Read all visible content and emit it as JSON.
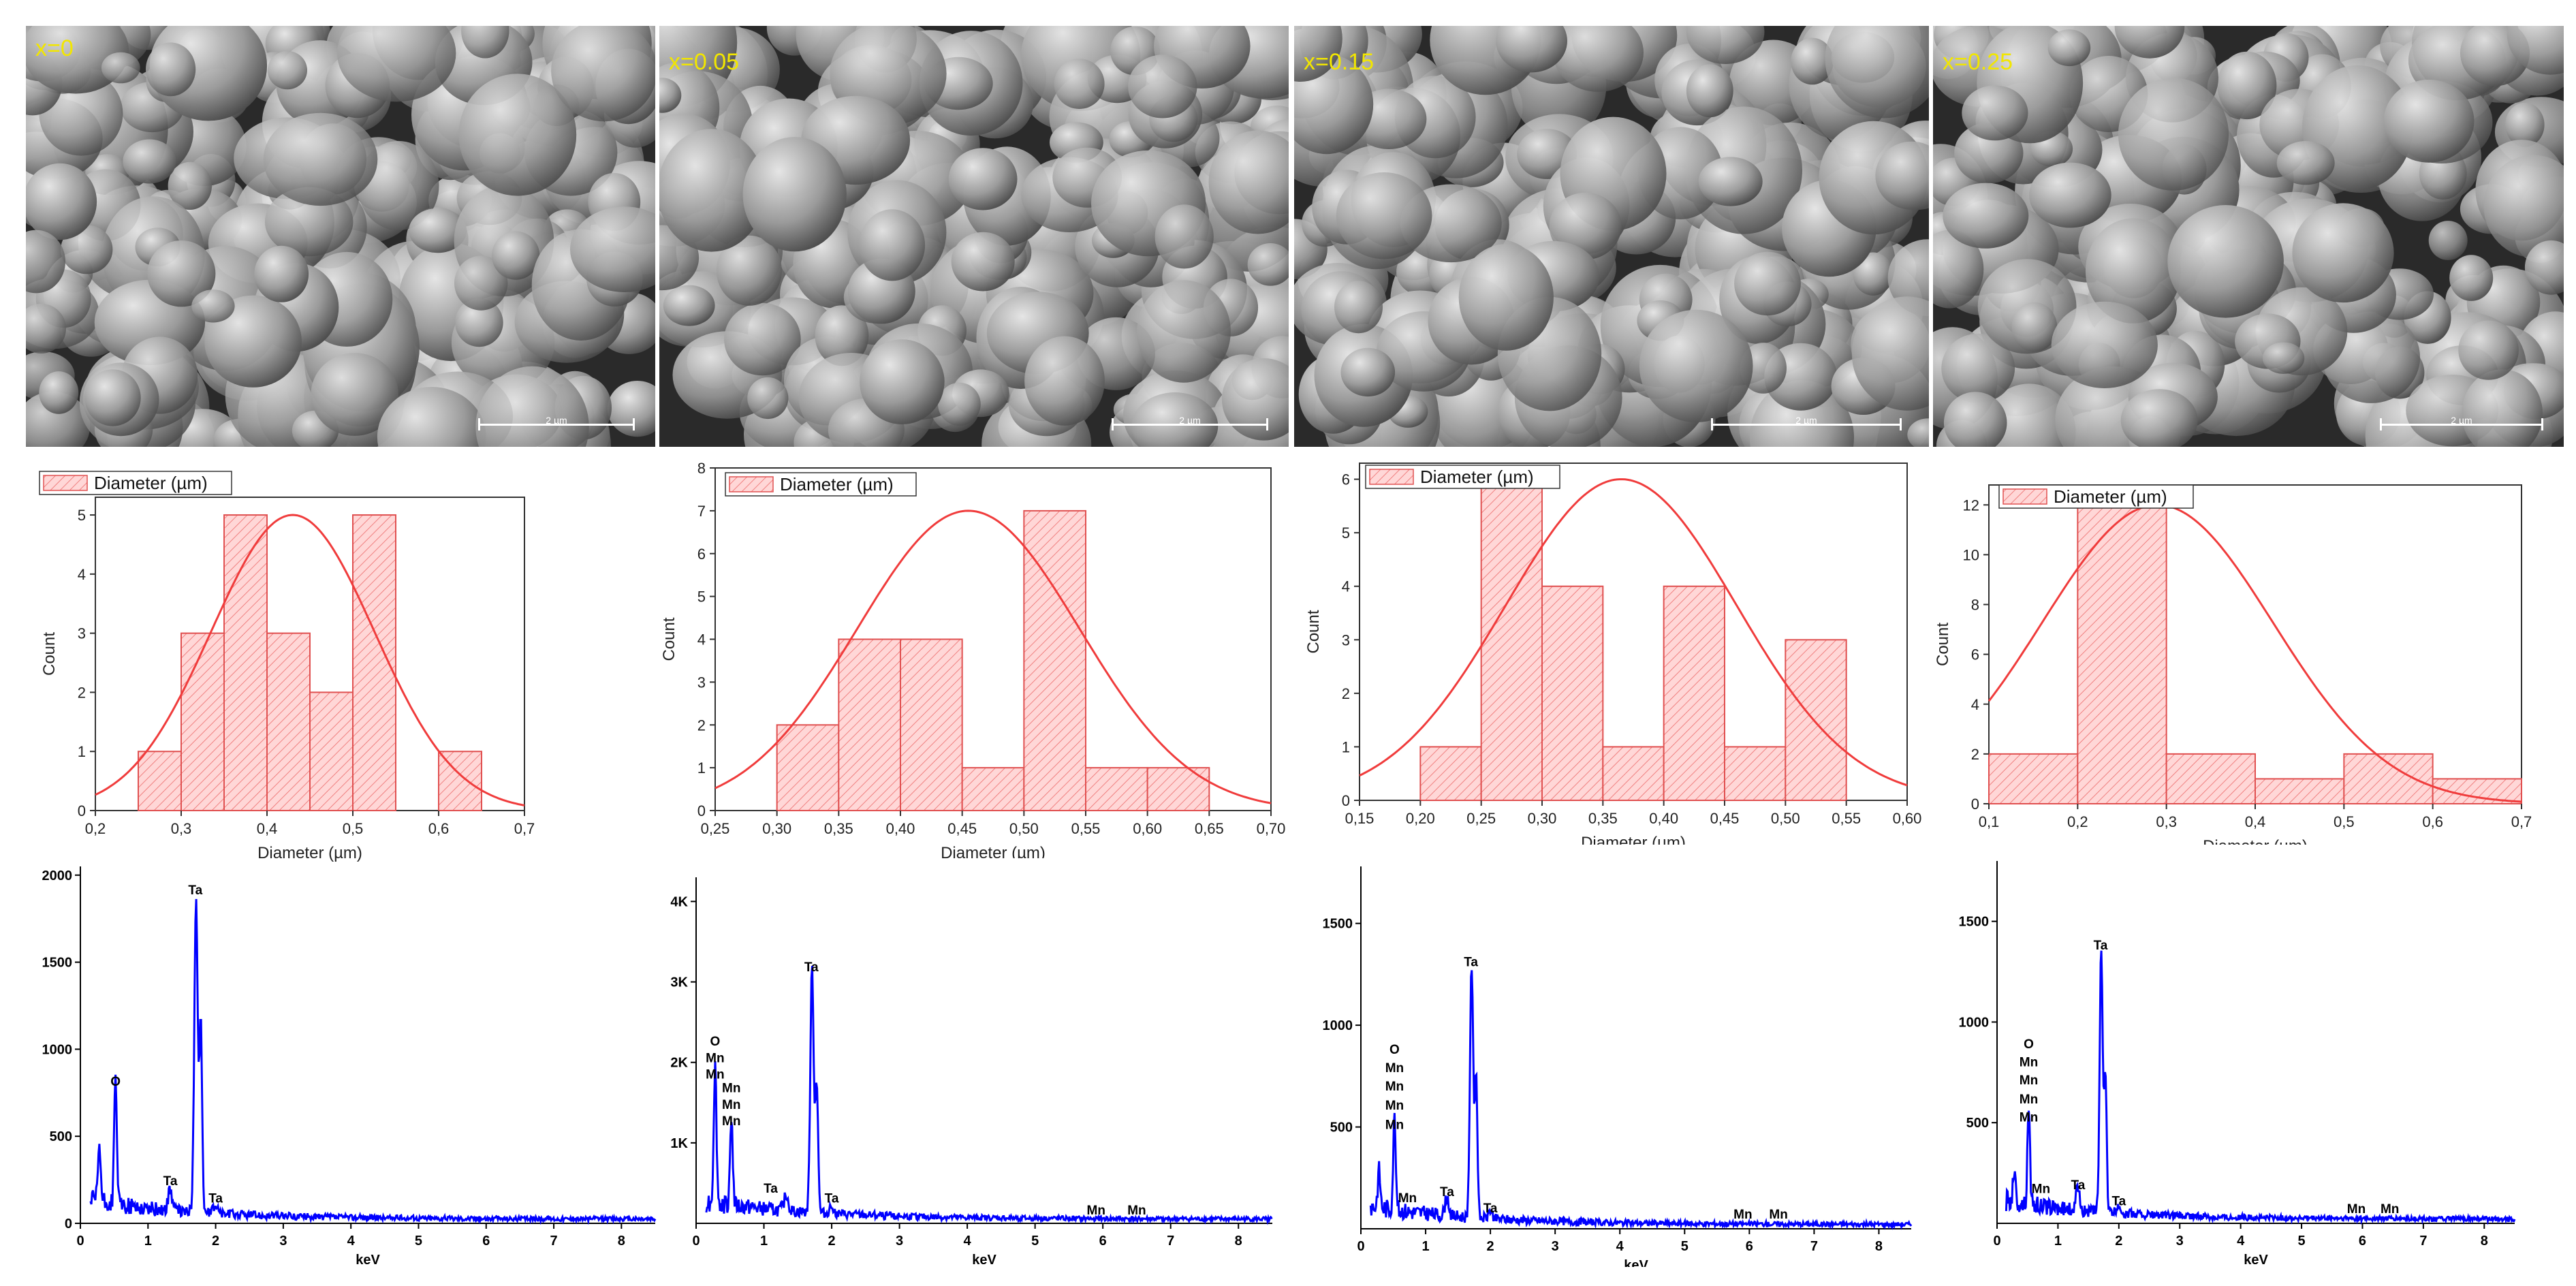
{
  "sem_panels": [
    {
      "label": "x=0",
      "scale_label": "2 µm"
    },
    {
      "label": "x=0.05",
      "scale_label": "2 µm"
    },
    {
      "label": "x=0.15",
      "scale_label": "2 µm"
    },
    {
      "label": "x=0.25",
      "scale_label": "2 µm"
    }
  ],
  "colors": {
    "sem_label": "#f2e600",
    "hist_fill": "#ffd7d7",
    "hist_hatch": "#f08080",
    "hist_stroke": "#e05050",
    "fit_line": "#f03c3c",
    "eds_line": "#0000ff",
    "axis": "#333333"
  },
  "chart_data": [
    {
      "type": "bar",
      "panel": "histogram-x0",
      "legend": "Diameter (µm)",
      "xlabel": "Diameter (µm)",
      "ylabel": "Count",
      "xlim": [
        0.2,
        0.7
      ],
      "ylim": [
        0,
        5.3
      ],
      "xticks": [
        "0,2",
        "0,3",
        "0,4",
        "0,5",
        "0,6",
        "0,7"
      ],
      "xtick_values": [
        0.2,
        0.3,
        0.4,
        0.5,
        0.6,
        0.7
      ],
      "yticks": [
        "0",
        "1",
        "2",
        "3",
        "4",
        "5"
      ],
      "ytick_values": [
        0,
        1,
        2,
        3,
        4,
        5
      ],
      "bin_edges": [
        0.25,
        0.3,
        0.35,
        0.4,
        0.45,
        0.5,
        0.55,
        0.6,
        0.65
      ],
      "values": [
        1,
        3,
        5,
        3,
        2,
        5,
        0,
        1
      ],
      "fit": {
        "type": "normal",
        "mean": 0.43,
        "sd": 0.095,
        "peak": 5.0
      }
    },
    {
      "type": "bar",
      "panel": "histogram-x005",
      "legend": "Diameter (µm)",
      "xlabel": "Diameter (µm)",
      "ylabel": "Count",
      "xlim": [
        0.25,
        0.7
      ],
      "ylim": [
        0,
        8
      ],
      "xticks": [
        "0,25",
        "0,30",
        "0,35",
        "0,40",
        "0,45",
        "0,50",
        "0,55",
        "0,60",
        "0,65",
        "0,70"
      ],
      "xtick_values": [
        0.25,
        0.3,
        0.35,
        0.4,
        0.45,
        0.5,
        0.55,
        0.6,
        0.65,
        0.7
      ],
      "yticks": [
        "0",
        "1",
        "2",
        "3",
        "4",
        "5",
        "6",
        "7",
        "8"
      ],
      "ytick_values": [
        0,
        1,
        2,
        3,
        4,
        5,
        6,
        7,
        8
      ],
      "bin_edges": [
        0.3,
        0.35,
        0.4,
        0.45,
        0.5,
        0.55,
        0.6,
        0.65
      ],
      "values": [
        2,
        4,
        4,
        1,
        7,
        1,
        1
      ],
      "fit": {
        "type": "normal",
        "mean": 0.455,
        "sd": 0.09,
        "peak": 7.0
      }
    },
    {
      "type": "bar",
      "panel": "histogram-x015",
      "legend": "Diameter (µm)",
      "xlabel": "Diameter (µm)",
      "ylabel": "Count",
      "xlim": [
        0.15,
        0.6
      ],
      "ylim": [
        0,
        6.3
      ],
      "xticks": [
        "0,15",
        "0,20",
        "0,25",
        "0,30",
        "0,35",
        "0,40",
        "0,45",
        "0,50",
        "0,55",
        "0,60"
      ],
      "xtick_values": [
        0.15,
        0.2,
        0.25,
        0.3,
        0.35,
        0.4,
        0.45,
        0.5,
        0.55,
        0.6
      ],
      "yticks": [
        "0",
        "1",
        "2",
        "3",
        "4",
        "5",
        "6"
      ],
      "ytick_values": [
        0,
        1,
        2,
        3,
        4,
        5,
        6
      ],
      "bin_edges": [
        0.2,
        0.25,
        0.3,
        0.35,
        0.4,
        0.45,
        0.5,
        0.55
      ],
      "values": [
        1,
        6,
        4,
        1,
        4,
        1,
        3
      ],
      "fit": {
        "type": "normal",
        "mean": 0.365,
        "sd": 0.095,
        "peak": 6.0
      }
    },
    {
      "type": "bar",
      "panel": "histogram-x025",
      "legend": "Diameter (µm)",
      "xlabel": "Diameter (µm)",
      "ylabel": "Count",
      "xlim": [
        0.1,
        0.7
      ],
      "ylim": [
        0,
        12.8
      ],
      "xticks": [
        "0,1",
        "0,2",
        "0,3",
        "0,4",
        "0,5",
        "0,6",
        "0,7"
      ],
      "xtick_values": [
        0.1,
        0.2,
        0.3,
        0.4,
        0.5,
        0.6,
        0.7
      ],
      "yticks": [
        "0",
        "2",
        "4",
        "6",
        "8",
        "10",
        "12"
      ],
      "ytick_values": [
        0,
        2,
        4,
        6,
        8,
        10,
        12
      ],
      "bin_edges": [
        0.1,
        0.2,
        0.3,
        0.4,
        0.5,
        0.6,
        0.7
      ],
      "values": [
        2,
        12,
        2,
        1,
        2,
        1
      ],
      "fit": {
        "type": "normal",
        "mean": 0.29,
        "sd": 0.13,
        "peak": 12.0
      }
    },
    {
      "type": "line",
      "panel": "eds-x0",
      "xlabel": "keV",
      "xlim": [
        0,
        8.5
      ],
      "ylim": [
        0,
        2050
      ],
      "xticks": [
        "0",
        "1",
        "2",
        "3",
        "4",
        "5",
        "6",
        "7",
        "8"
      ],
      "xtick_values": [
        0,
        1,
        2,
        3,
        4,
        5,
        6,
        7,
        8
      ],
      "yticks": [
        "0",
        "500",
        "1000",
        "1500",
        "2000"
      ],
      "ytick_values": [
        0,
        500,
        1000,
        1500,
        2000
      ],
      "peaks": [
        {
          "x": 0.28,
          "y": 330,
          "w": 0.02
        },
        {
          "x": 0.52,
          "y": 720,
          "w": 0.02
        },
        {
          "x": 1.33,
          "y": 120,
          "w": 0.03
        },
        {
          "x": 1.71,
          "y": 1820,
          "w": 0.025
        },
        {
          "x": 1.78,
          "y": 1100,
          "w": 0.02
        },
        {
          "x": 2.0,
          "y": 50,
          "w": 0.03
        }
      ],
      "labels": [
        {
          "text": "O",
          "x": 0.52,
          "y": 790
        },
        {
          "text": "Ta",
          "x": 1.7,
          "y": 1890
        },
        {
          "text": "Ta",
          "x": 1.33,
          "y": 220
        },
        {
          "text": "Ta",
          "x": 2.0,
          "y": 120
        }
      ]
    },
    {
      "type": "line",
      "panel": "eds-x005",
      "xlabel": "keV",
      "xlim": [
        0,
        8.5
      ],
      "ylim": [
        0,
        4300
      ],
      "xticks": [
        "0",
        "1",
        "2",
        "3",
        "4",
        "5",
        "6",
        "7",
        "8"
      ],
      "xtick_values": [
        0,
        1,
        2,
        3,
        4,
        5,
        6,
        7,
        8
      ],
      "yticks": [
        "1K",
        "2K",
        "3K",
        "4K"
      ],
      "ytick_values": [
        1000,
        2000,
        3000,
        4000
      ],
      "peaks": [
        {
          "x": 0.28,
          "y": 1700,
          "w": 0.02
        },
        {
          "x": 0.52,
          "y": 1100,
          "w": 0.02
        },
        {
          "x": 1.33,
          "y": 200,
          "w": 0.03
        },
        {
          "x": 1.71,
          "y": 3050,
          "w": 0.025
        },
        {
          "x": 1.78,
          "y": 1600,
          "w": 0.02
        },
        {
          "x": 2.0,
          "y": 100,
          "w": 0.03
        }
      ],
      "labels": [
        {
          "text": "O",
          "x": 0.28,
          "y": 2210
        },
        {
          "text": "Mn",
          "x": 0.28,
          "y": 2000
        },
        {
          "text": "Mn",
          "x": 0.28,
          "y": 1800
        },
        {
          "text": "Mn",
          "x": 0.52,
          "y": 1630
        },
        {
          "text": "Mn",
          "x": 0.52,
          "y": 1420
        },
        {
          "text": "Mn",
          "x": 0.52,
          "y": 1220
        },
        {
          "text": "Ta",
          "x": 1.7,
          "y": 3130
        },
        {
          "text": "Ta",
          "x": 1.1,
          "y": 380
        },
        {
          "text": "Ta",
          "x": 2.0,
          "y": 260
        },
        {
          "text": "Mn",
          "x": 5.9,
          "y": 110
        },
        {
          "text": "Mn",
          "x": 6.5,
          "y": 110
        }
      ]
    },
    {
      "type": "line",
      "panel": "eds-x015",
      "xlabel": "keV",
      "xlim": [
        0,
        8.5
      ],
      "ylim": [
        0,
        1780
      ],
      "xticks": [
        "0",
        "1",
        "2",
        "3",
        "4",
        "5",
        "6",
        "7",
        "8"
      ],
      "xtick_values": [
        0,
        1,
        2,
        3,
        4,
        5,
        6,
        7,
        8
      ],
      "yticks": [
        "500",
        "1000",
        "1500"
      ],
      "ytick_values": [
        500,
        1000,
        1500
      ],
      "peaks": [
        {
          "x": 0.28,
          "y": 180,
          "w": 0.02
        },
        {
          "x": 0.52,
          "y": 460,
          "w": 0.02
        },
        {
          "x": 1.33,
          "y": 90,
          "w": 0.03
        },
        {
          "x": 1.71,
          "y": 1240,
          "w": 0.025
        },
        {
          "x": 1.78,
          "y": 700,
          "w": 0.02
        },
        {
          "x": 2.0,
          "y": 40,
          "w": 0.03
        }
      ],
      "labels": [
        {
          "text": "O",
          "x": 0.52,
          "y": 860
        },
        {
          "text": "Mn",
          "x": 0.52,
          "y": 770
        },
        {
          "text": "Mn",
          "x": 0.52,
          "y": 680
        },
        {
          "text": "Mn",
          "x": 0.52,
          "y": 585
        },
        {
          "text": "Mn",
          "x": 0.52,
          "y": 490
        },
        {
          "text": "Mn",
          "x": 0.72,
          "y": 130
        },
        {
          "text": "Ta",
          "x": 1.7,
          "y": 1290
        },
        {
          "text": "Ta",
          "x": 1.33,
          "y": 160
        },
        {
          "text": "Ta",
          "x": 2.0,
          "y": 80
        },
        {
          "text": "Mn",
          "x": 5.9,
          "y": 50
        },
        {
          "text": "Mn",
          "x": 6.45,
          "y": 50
        }
      ]
    },
    {
      "type": "line",
      "panel": "eds-x025",
      "xlabel": "keV",
      "xlim": [
        0,
        8.5
      ],
      "ylim": [
        0,
        1800
      ],
      "xticks": [
        "0",
        "1",
        "2",
        "3",
        "4",
        "5",
        "6",
        "7",
        "8"
      ],
      "xtick_values": [
        0,
        1,
        2,
        3,
        4,
        5,
        6,
        7,
        8
      ],
      "yticks": [
        "500",
        "1000",
        "1500"
      ],
      "ytick_values": [
        500,
        1000,
        1500
      ],
      "peaks": [
        {
          "x": 0.28,
          "y": 160,
          "w": 0.02
        },
        {
          "x": 0.52,
          "y": 500,
          "w": 0.02
        },
        {
          "x": 1.33,
          "y": 120,
          "w": 0.03
        },
        {
          "x": 1.71,
          "y": 1300,
          "w": 0.025
        },
        {
          "x": 1.78,
          "y": 700,
          "w": 0.02
        },
        {
          "x": 2.0,
          "y": 40,
          "w": 0.03
        }
      ],
      "labels": [
        {
          "text": "O",
          "x": 0.52,
          "y": 870
        },
        {
          "text": "Mn",
          "x": 0.52,
          "y": 780
        },
        {
          "text": "Mn",
          "x": 0.52,
          "y": 690
        },
        {
          "text": "Mn",
          "x": 0.52,
          "y": 595
        },
        {
          "text": "Mn",
          "x": 0.52,
          "y": 505
        },
        {
          "text": "Mn",
          "x": 0.72,
          "y": 150
        },
        {
          "text": "Ta",
          "x": 1.7,
          "y": 1360
        },
        {
          "text": "Ta",
          "x": 1.33,
          "y": 170
        },
        {
          "text": "Ta",
          "x": 2.0,
          "y": 90
        },
        {
          "text": "Mn",
          "x": 5.9,
          "y": 50
        },
        {
          "text": "Mn",
          "x": 6.45,
          "y": 50
        }
      ]
    }
  ]
}
